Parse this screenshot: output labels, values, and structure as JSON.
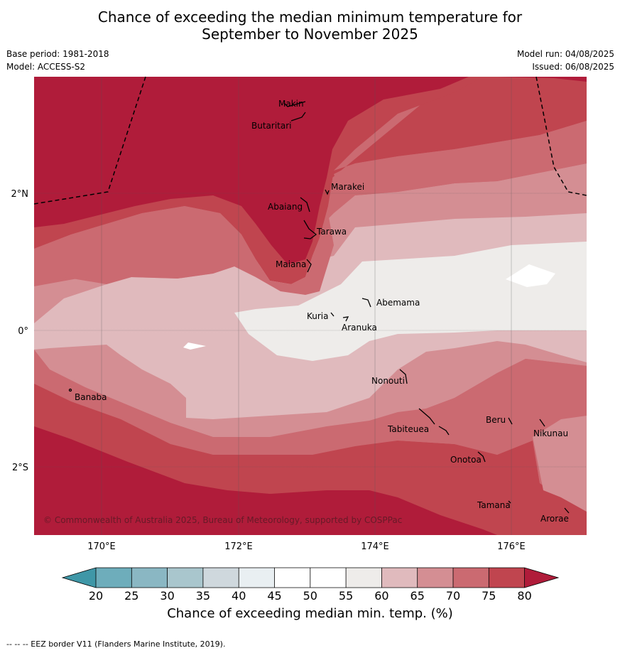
{
  "title": {
    "line1": "Chance of exceeding the median minimum temperature for",
    "line2": "September to November 2025"
  },
  "meta": {
    "base_period": "Base period: 1981-2018",
    "model": "Model: ACCESS-S2",
    "model_run": "Model run: 04/08/2025",
    "issued": "Issued: 06/08/2025"
  },
  "map": {
    "lat_ticks": [
      "2°N",
      "0°",
      "2°S"
    ],
    "lon_ticks": [
      "170°E",
      "172°E",
      "174°E",
      "176°E"
    ],
    "copyright": "© Commonwealth of Australia 2025, Bureau of Meteorology, supported by COSPPac",
    "places": [
      "Makin",
      "Butaritari",
      "Marakei",
      "Abaiang",
      "Tarawa",
      "Maiana",
      "Abemama",
      "Kuria",
      "Aranuka",
      "Nonouti",
      "Banaba",
      "Beru",
      "Nikunau",
      "Tabiteuea",
      "Onotoa",
      "Tamana",
      "Arorae"
    ],
    "colors": {
      "c80": "#b01c3a",
      "c75": "#c0454f",
      "c70": "#cb6a71",
      "c65": "#d48e93",
      "c60": "#e0babd",
      "c55": "#eeecea",
      "c50": "#ffffff",
      "c45": "#ffffff",
      "c40": "#e9eff2",
      "c35": "#cfd8dd",
      "c30": "#a9c6cd",
      "c25": "#8ab7c3",
      "c20": "#6eadbb",
      "c_low": "#3f97a7"
    }
  },
  "colorbar": {
    "ticks": [
      "20",
      "25",
      "30",
      "35",
      "40",
      "45",
      "50",
      "55",
      "60",
      "65",
      "70",
      "75",
      "80"
    ],
    "label": "Chance of exceeding median min. temp. (%)"
  },
  "footnote": "--  --  -- EEZ border V11 (Flanders Marine Institute, 2019)."
}
